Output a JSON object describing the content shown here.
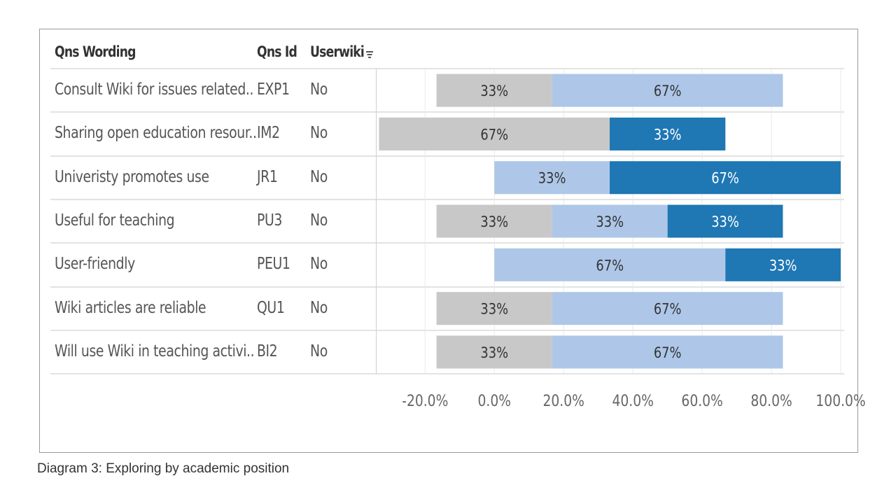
{
  "table": {
    "headers": {
      "wording": "Qns Wording",
      "id": "Qns Id",
      "userwiki": "Userwiki"
    }
  },
  "caption": "Diagram 3: Exploring by academic position",
  "colors": {
    "negative": "#c8c8c8",
    "light_blue": "#aec7e8",
    "dark_blue": "#1f77b4",
    "dark_label": "#333333",
    "light_label": "#ffffff",
    "grid": "#e9e9e9",
    "axis_text": "#666666"
  },
  "chart_data": {
    "type": "bar",
    "orientation": "horizontal",
    "stacked": true,
    "diverging": true,
    "x_ticks": [
      "-20.0%",
      "0.0%",
      "20.0%",
      "40.0%",
      "60.0%",
      "80.0%",
      "100.0%"
    ],
    "x_tick_values": [
      -20,
      0,
      20,
      40,
      60,
      80,
      100
    ],
    "xlim": [
      -34,
      101
    ],
    "grid": true,
    "rows": [
      {
        "wording": "Consult Wiki for issues related..",
        "id": "EXP1",
        "userwiki": "No",
        "segments": [
          {
            "start": -16.7,
            "end": 16.7,
            "label": "33%",
            "color": "negative"
          },
          {
            "start": 16.7,
            "end": 83.3,
            "label": "67%",
            "color": "light_blue"
          }
        ]
      },
      {
        "wording": "Sharing open education resour..",
        "id": "IM2",
        "userwiki": "No",
        "segments": [
          {
            "start": -33.3,
            "end": 33.3,
            "label": "67%",
            "color": "negative"
          },
          {
            "start": 33.3,
            "end": 66.7,
            "label": "33%",
            "color": "dark_blue"
          }
        ]
      },
      {
        "wording": "Univeristy promotes use",
        "id": "JR1",
        "userwiki": "No",
        "segments": [
          {
            "start": 0,
            "end": 33.3,
            "label": "33%",
            "color": "light_blue"
          },
          {
            "start": 33.3,
            "end": 100,
            "label": "67%",
            "color": "dark_blue"
          }
        ]
      },
      {
        "wording": "Useful for teaching",
        "id": "PU3",
        "userwiki": "No",
        "segments": [
          {
            "start": -16.7,
            "end": 16.7,
            "label": "33%",
            "color": "negative"
          },
          {
            "start": 16.7,
            "end": 50,
            "label": "33%",
            "color": "light_blue"
          },
          {
            "start": 50,
            "end": 83.3,
            "label": "33%",
            "color": "dark_blue"
          }
        ]
      },
      {
        "wording": "User-friendly",
        "id": "PEU1",
        "userwiki": "No",
        "segments": [
          {
            "start": 0,
            "end": 66.7,
            "label": "67%",
            "color": "light_blue"
          },
          {
            "start": 66.7,
            "end": 100,
            "label": "33%",
            "color": "dark_blue"
          }
        ]
      },
      {
        "wording": "Wiki articles are reliable",
        "id": "QU1",
        "userwiki": "No",
        "segments": [
          {
            "start": -16.7,
            "end": 16.7,
            "label": "33%",
            "color": "negative"
          },
          {
            "start": 16.7,
            "end": 83.3,
            "label": "67%",
            "color": "light_blue"
          }
        ]
      },
      {
        "wording": "Will use Wiki in teaching activi..",
        "id": "BI2",
        "userwiki": "No",
        "segments": [
          {
            "start": -16.7,
            "end": 16.7,
            "label": "33%",
            "color": "negative"
          },
          {
            "start": 16.7,
            "end": 83.3,
            "label": "67%",
            "color": "light_blue"
          }
        ]
      }
    ]
  }
}
